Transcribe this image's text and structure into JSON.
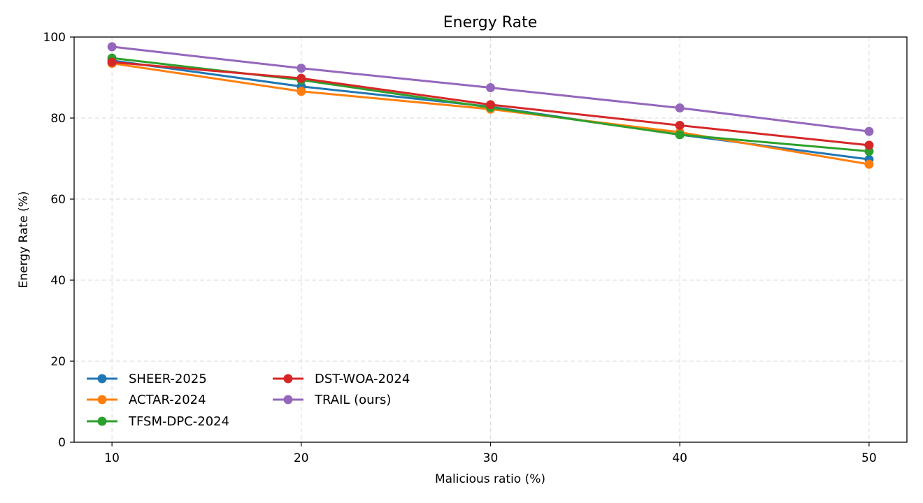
{
  "chart_data": {
    "type": "line",
    "title": "Energy Rate",
    "xlabel": "Malicious ratio (%)",
    "ylabel": "Energy Rate (%)",
    "x": [
      10,
      20,
      30,
      40,
      50
    ],
    "xticks": [
      "10",
      "20",
      "30",
      "40",
      "50"
    ],
    "yticks": [
      "0",
      "20",
      "40",
      "60",
      "80",
      "100"
    ],
    "xlim": [
      8,
      52
    ],
    "ylim": [
      0,
      100
    ],
    "grid": true,
    "legend_position": "lower-left",
    "series": [
      {
        "name": "SHEER-2025",
        "color": "#1f77b4",
        "values": [
          94.2,
          87.8,
          82.8,
          75.9,
          69.8
        ]
      },
      {
        "name": "ACTAR-2024",
        "color": "#ff7f0e",
        "values": [
          93.5,
          86.6,
          82.2,
          76.5,
          68.6
        ]
      },
      {
        "name": "TFSM-DPC-2024",
        "color": "#2ca02c",
        "values": [
          94.8,
          89.4,
          82.6,
          75.9,
          71.8
        ]
      },
      {
        "name": "DST-WOA-2024",
        "color": "#d62728",
        "values": [
          93.8,
          89.8,
          83.3,
          78.2,
          73.3
        ]
      },
      {
        "name": "TRAIL (ours)",
        "color": "#9467bd",
        "values": [
          97.6,
          92.3,
          87.5,
          82.5,
          76.7
        ]
      }
    ]
  }
}
